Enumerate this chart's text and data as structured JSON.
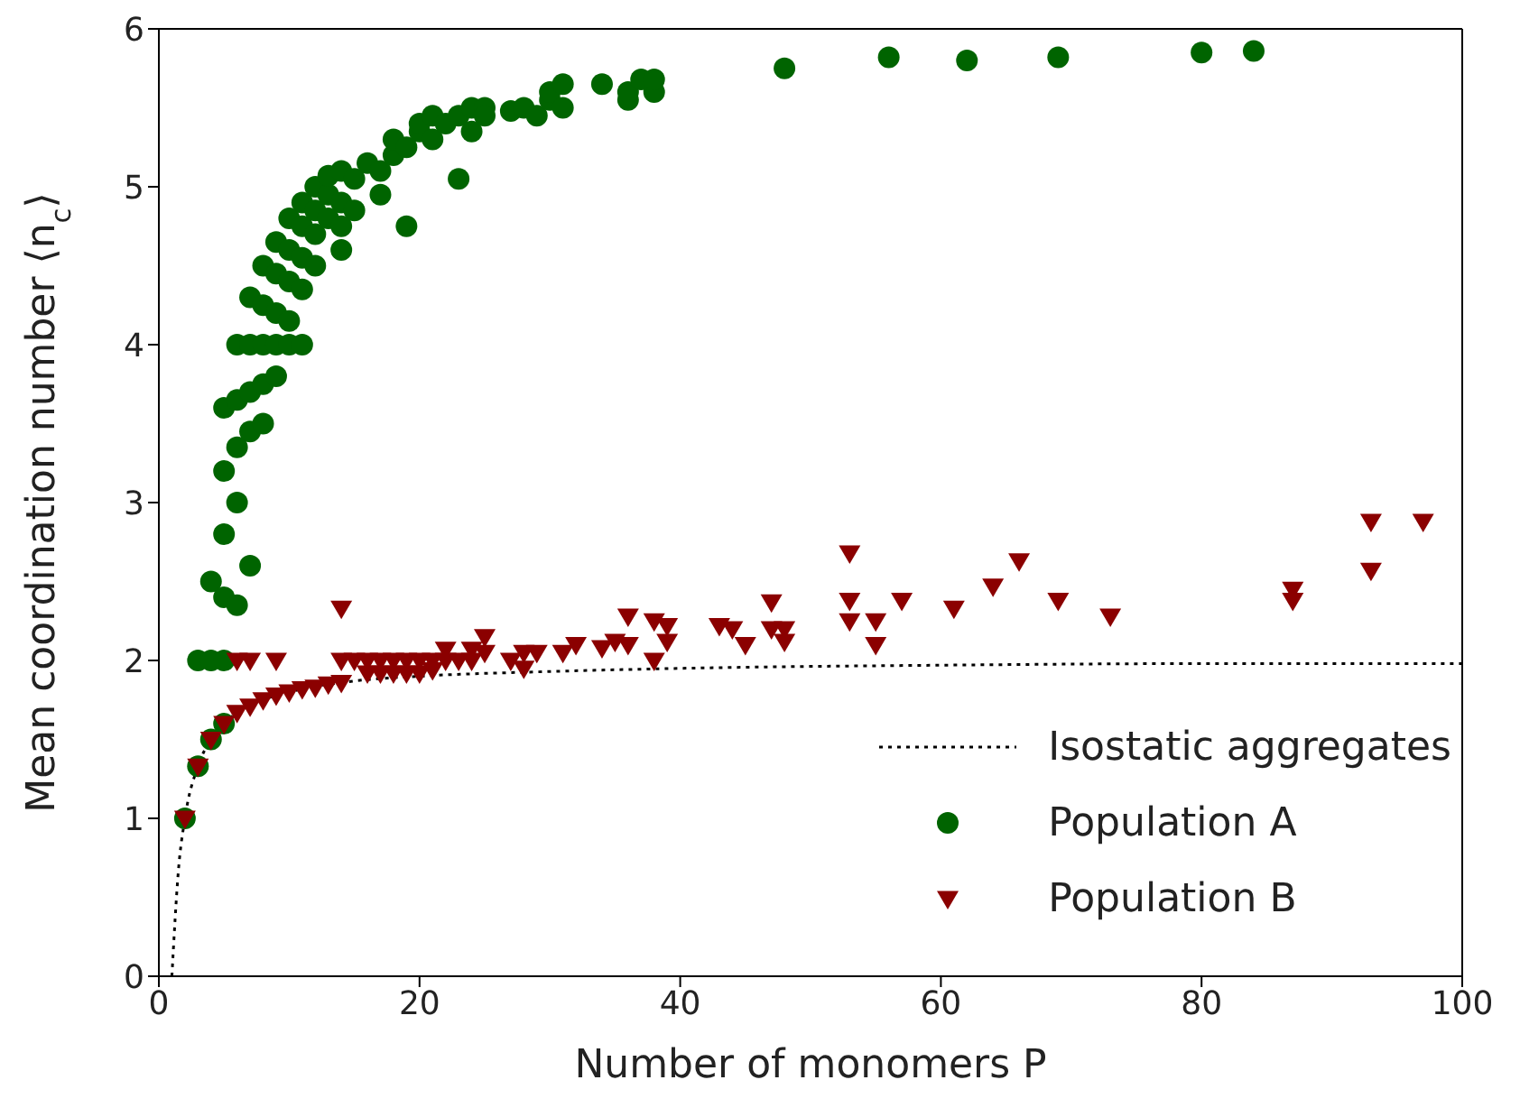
{
  "chart_data": {
    "type": "scatter",
    "xlabel": "Number of monomers P",
    "ylabel": "Mean coordination number ⟨n$_{c}$⟩",
    "xlim": [
      0,
      100
    ],
    "ylim": [
      0,
      6
    ],
    "xticks": [
      0,
      20,
      40,
      60,
      80,
      100
    ],
    "yticks": [
      0,
      1,
      2,
      3,
      4,
      5,
      6
    ],
    "legend": "bottom right",
    "series": [
      {
        "name": "Isostatic aggregates",
        "type": "line",
        "color": "#000000",
        "line_style": "dotted",
        "marker": "none",
        "x": [
          1,
          1.5,
          2,
          3,
          4,
          5,
          6,
          8,
          10,
          15,
          20,
          30,
          40,
          60,
          80,
          100
        ],
        "values": [
          0,
          0.67,
          1,
          1.33,
          1.5,
          1.6,
          1.67,
          1.75,
          1.8,
          1.87,
          1.9,
          1.93,
          1.95,
          1.97,
          1.98,
          1.98
        ]
      },
      {
        "name": "Population A",
        "color": "#006400",
        "marker": "circle",
        "x": [
          2,
          3,
          3,
          4,
          5,
          4,
          5,
          4,
          5,
          6,
          5,
          6,
          7,
          5,
          6,
          7,
          8,
          5,
          6,
          7,
          8,
          9,
          6,
          7,
          8,
          9,
          10,
          11,
          7,
          8,
          9,
          10,
          8,
          9,
          10,
          11,
          9,
          10,
          11,
          12,
          10,
          11,
          12,
          11,
          12,
          13,
          12,
          13,
          14,
          14,
          14,
          13,
          14,
          15,
          15,
          16,
          17,
          17,
          18,
          18,
          19,
          19,
          20,
          20,
          21,
          21,
          22,
          23,
          23,
          24,
          24,
          25,
          25,
          27,
          28,
          29,
          30,
          30,
          31,
          31,
          34,
          36,
          36,
          37,
          38,
          38,
          48,
          56,
          62,
          69,
          80,
          84
        ],
        "values": [
          1,
          1.33,
          2,
          2,
          2,
          1.5,
          1.6,
          2.5,
          2.4,
          2.35,
          2.8,
          3.0,
          2.6,
          3.2,
          3.35,
          3.45,
          3.5,
          3.6,
          3.65,
          3.7,
          3.75,
          3.8,
          4.0,
          4.0,
          4.0,
          4.0,
          4.0,
          4.0,
          4.3,
          4.25,
          4.2,
          4.15,
          4.5,
          4.45,
          4.4,
          4.35,
          4.65,
          4.6,
          4.55,
          4.5,
          4.8,
          4.75,
          4.7,
          4.9,
          4.85,
          4.8,
          5.0,
          4.95,
          4.9,
          4.6,
          4.75,
          5.07,
          5.1,
          5.05,
          4.85,
          5.15,
          5.1,
          4.95,
          5.2,
          5.3,
          4.75,
          5.25,
          5.35,
          5.4,
          5.3,
          5.45,
          5.4,
          5.05,
          5.45,
          5.35,
          5.5,
          5.5,
          5.45,
          5.48,
          5.5,
          5.45,
          5.55,
          5.6,
          5.5,
          5.65,
          5.65,
          5.55,
          5.6,
          5.68,
          5.6,
          5.68,
          5.75,
          5.82,
          5.8,
          5.82,
          5.85,
          5.86
        ]
      },
      {
        "name": "Population B",
        "color": "#8b0000",
        "marker": "triangle",
        "x": [
          2,
          3,
          4,
          5,
          6,
          7,
          8,
          9,
          10,
          11,
          12,
          13,
          14,
          6,
          7,
          9,
          14,
          15,
          16,
          17,
          18,
          19,
          20,
          21,
          22,
          14,
          16,
          17,
          18,
          19,
          20,
          21,
          22,
          23,
          24,
          25,
          24,
          25,
          27,
          28,
          29,
          28,
          31,
          32,
          34,
          35,
          36,
          36,
          38,
          38,
          39,
          39,
          43,
          44,
          45,
          47,
          47,
          48,
          48,
          53,
          53,
          53,
          55,
          55,
          57,
          61,
          64,
          66,
          69,
          73,
          87,
          87,
          93,
          93,
          97
        ],
        "values": [
          1,
          1.33,
          1.5,
          1.6,
          1.67,
          1.71,
          1.75,
          1.78,
          1.8,
          1.82,
          1.83,
          1.85,
          1.86,
          2,
          2,
          2,
          2,
          2,
          2,
          2,
          2,
          2,
          2,
          2,
          2,
          2.33,
          1.92,
          1.92,
          1.92,
          1.92,
          1.92,
          1.94,
          2.07,
          2.0,
          2.07,
          2.15,
          2.0,
          2.05,
          2.0,
          2.05,
          2.05,
          1.95,
          2.05,
          2.1,
          2.08,
          2.12,
          2.1,
          2.28,
          2.0,
          2.25,
          2.12,
          2.22,
          2.22,
          2.2,
          2.1,
          2.2,
          2.37,
          2.2,
          2.12,
          2.68,
          2.38,
          2.25,
          2.25,
          2.1,
          2.38,
          2.33,
          2.47,
          2.63,
          2.38,
          2.28,
          2.45,
          2.38,
          2.88,
          2.57,
          2.88
        ]
      }
    ]
  }
}
